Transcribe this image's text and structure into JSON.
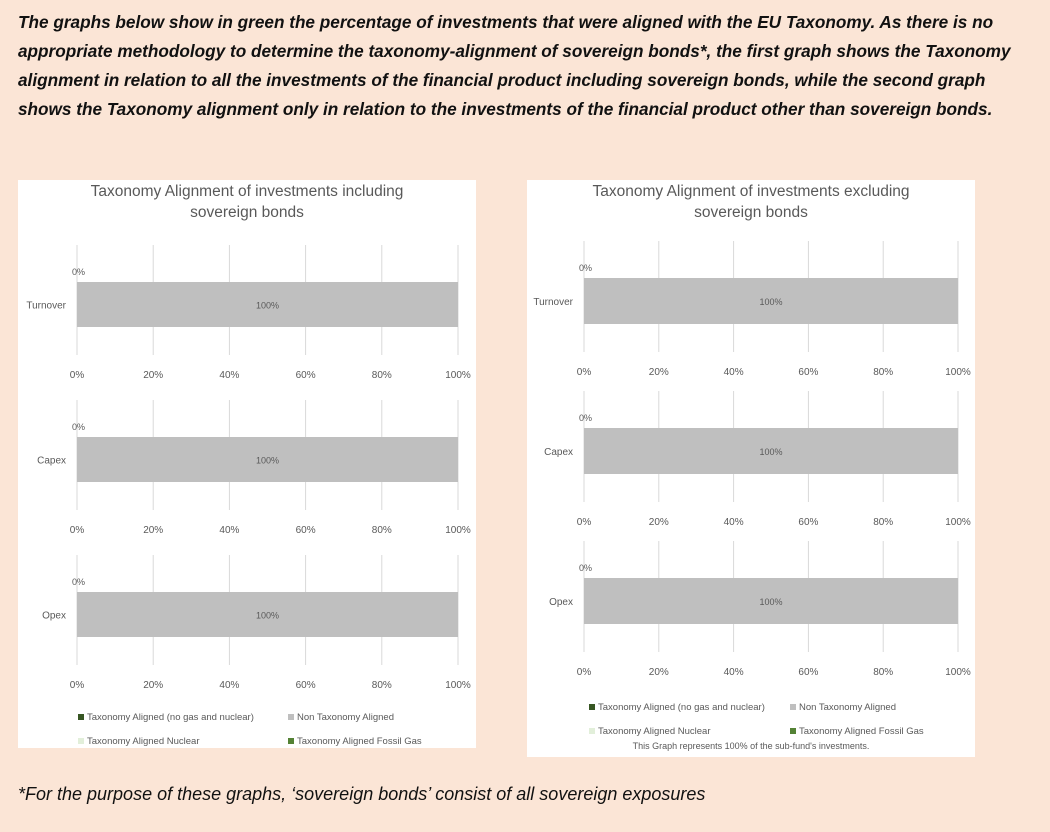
{
  "intro": "The graphs below show in green the percentage of investments that were aligned with the EU Taxonomy. As there is no appropriate methodology to determine the taxonomy-alignment of sovereign bonds*, the first graph shows the Taxonomy alignment in relation to all the investments of the financial product including sovereign bonds, while the second graph shows the Taxonomy alignment only in relation to the investments of the financial product other than sovereign bonds.",
  "chart_data": [
    {
      "type": "bar",
      "orientation": "horizontal",
      "stacked": true,
      "title": [
        "Taxonomy Alignment of investments including",
        "sovereign bonds"
      ],
      "categories": [
        "Turnover",
        "Capex",
        "Opex"
      ],
      "series": [
        {
          "name": "Taxonomy Aligned (no gas and nuclear)",
          "color": "#375623",
          "values": [
            0,
            0,
            0
          ],
          "value_labels": [
            "0%",
            "0%",
            "0%"
          ]
        },
        {
          "name": "Non Taxonomy Aligned",
          "color": "#bfbfbf",
          "values": [
            100,
            100,
            100
          ],
          "value_labels": [
            "100%",
            "100%",
            "100%"
          ]
        },
        {
          "name": "Taxonomy Aligned Nuclear",
          "color": "#e2efda",
          "values": [
            0,
            0,
            0
          ]
        },
        {
          "name": "Taxonomy Aligned Fossil Gas",
          "color": "#548235",
          "values": [
            0,
            0,
            0
          ]
        }
      ],
      "xlim": [
        0,
        100
      ],
      "xticks": [
        {
          "value": 0,
          "label": "0%"
        },
        {
          "value": 20,
          "label": "20%"
        },
        {
          "value": 40,
          "label": "40%"
        },
        {
          "value": 60,
          "label": "60%"
        },
        {
          "value": 80,
          "label": "80%"
        },
        {
          "value": 100,
          "label": "100%"
        }
      ],
      "grid": true
    },
    {
      "type": "bar",
      "orientation": "horizontal",
      "stacked": true,
      "title": [
        "Taxonomy Alignment of investments excluding",
        "sovereign bonds"
      ],
      "categories": [
        "Turnover",
        "Capex",
        "Opex"
      ],
      "series": [
        {
          "name": "Taxonomy Aligned (no gas and nuclear)",
          "color": "#375623",
          "values": [
            0,
            0,
            0
          ],
          "value_labels": [
            "0%",
            "0%",
            "0%"
          ]
        },
        {
          "name": "Non Taxonomy Aligned",
          "color": "#bfbfbf",
          "values": [
            100,
            100,
            100
          ],
          "value_labels": [
            "100%",
            "100%",
            "100%"
          ]
        },
        {
          "name": "Taxonomy Aligned Nuclear",
          "color": "#e2efda",
          "values": [
            0,
            0,
            0
          ]
        },
        {
          "name": "Taxonomy Aligned Fossil Gas",
          "color": "#548235",
          "values": [
            0,
            0,
            0
          ]
        }
      ],
      "xlim": [
        0,
        100
      ],
      "xticks": [
        {
          "value": 0,
          "label": "0%"
        },
        {
          "value": 20,
          "label": "20%"
        },
        {
          "value": 40,
          "label": "40%"
        },
        {
          "value": 60,
          "label": "60%"
        },
        {
          "value": 80,
          "label": "80%"
        },
        {
          "value": 100,
          "label": "100%"
        }
      ],
      "grid": true,
      "note": "This Graph represents 100% of the sub-fund's investments."
    }
  ],
  "footnote": "*For the purpose of these graphs, ‘sovereign bonds’ consist of  all sovereign exposures"
}
